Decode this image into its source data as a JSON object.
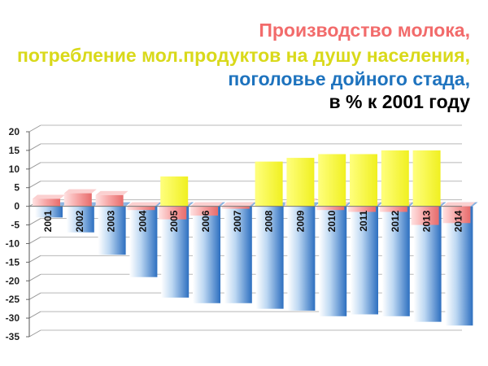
{
  "title": {
    "line1": "Производство молока,",
    "line2": "потребление мол.продуктов на душу населения,",
    "line3": "поголовье дойного стада,",
    "line4": "в % к 2001 году"
  },
  "colors": {
    "production": "#f08080",
    "consumption": "#f5f53c",
    "herd": "#3d7cc9",
    "title_line1": "#f26b6b",
    "title_line2": "#d9d91a",
    "title_line3": "#1e73be",
    "title_line4": "#000000"
  },
  "chart_data": {
    "type": "bar",
    "title": "Производство молока, потребление мол.продуктов на душу населения, поголовье дойного стада, в % к 2001 году",
    "categories": [
      "2001",
      "2002",
      "2003",
      "2004",
      "2005",
      "2006",
      "2007",
      "2008",
      "2009",
      "2010",
      "2011",
      "2012",
      "2013",
      "2014"
    ],
    "series": [
      {
        "key": "production",
        "values": [
          2,
          3.5,
          3,
          -1,
          -3.5,
          -2.5,
          -0.5,
          0,
          1,
          -1,
          -1.5,
          -1.5,
          -5,
          -4.5
        ]
      },
      {
        "key": "consumption",
        "values": [
          0,
          0,
          0,
          0,
          8,
          0,
          0,
          12,
          13,
          14,
          14,
          15,
          15,
          0
        ]
      },
      {
        "key": "herd",
        "values": [
          -3,
          -7,
          -13,
          -19,
          -24.5,
          -26,
          -26,
          -27.5,
          -28,
          -29.5,
          -29,
          -29.5,
          -31,
          -32
        ]
      }
    ],
    "ylim": [
      -35,
      20
    ],
    "yticks": [
      20,
      15,
      10,
      5,
      0,
      -5,
      -10,
      -15,
      -20,
      -25,
      -30,
      -35
    ],
    "xlabel": "",
    "ylabel": "",
    "grid": true,
    "legend": "none"
  }
}
